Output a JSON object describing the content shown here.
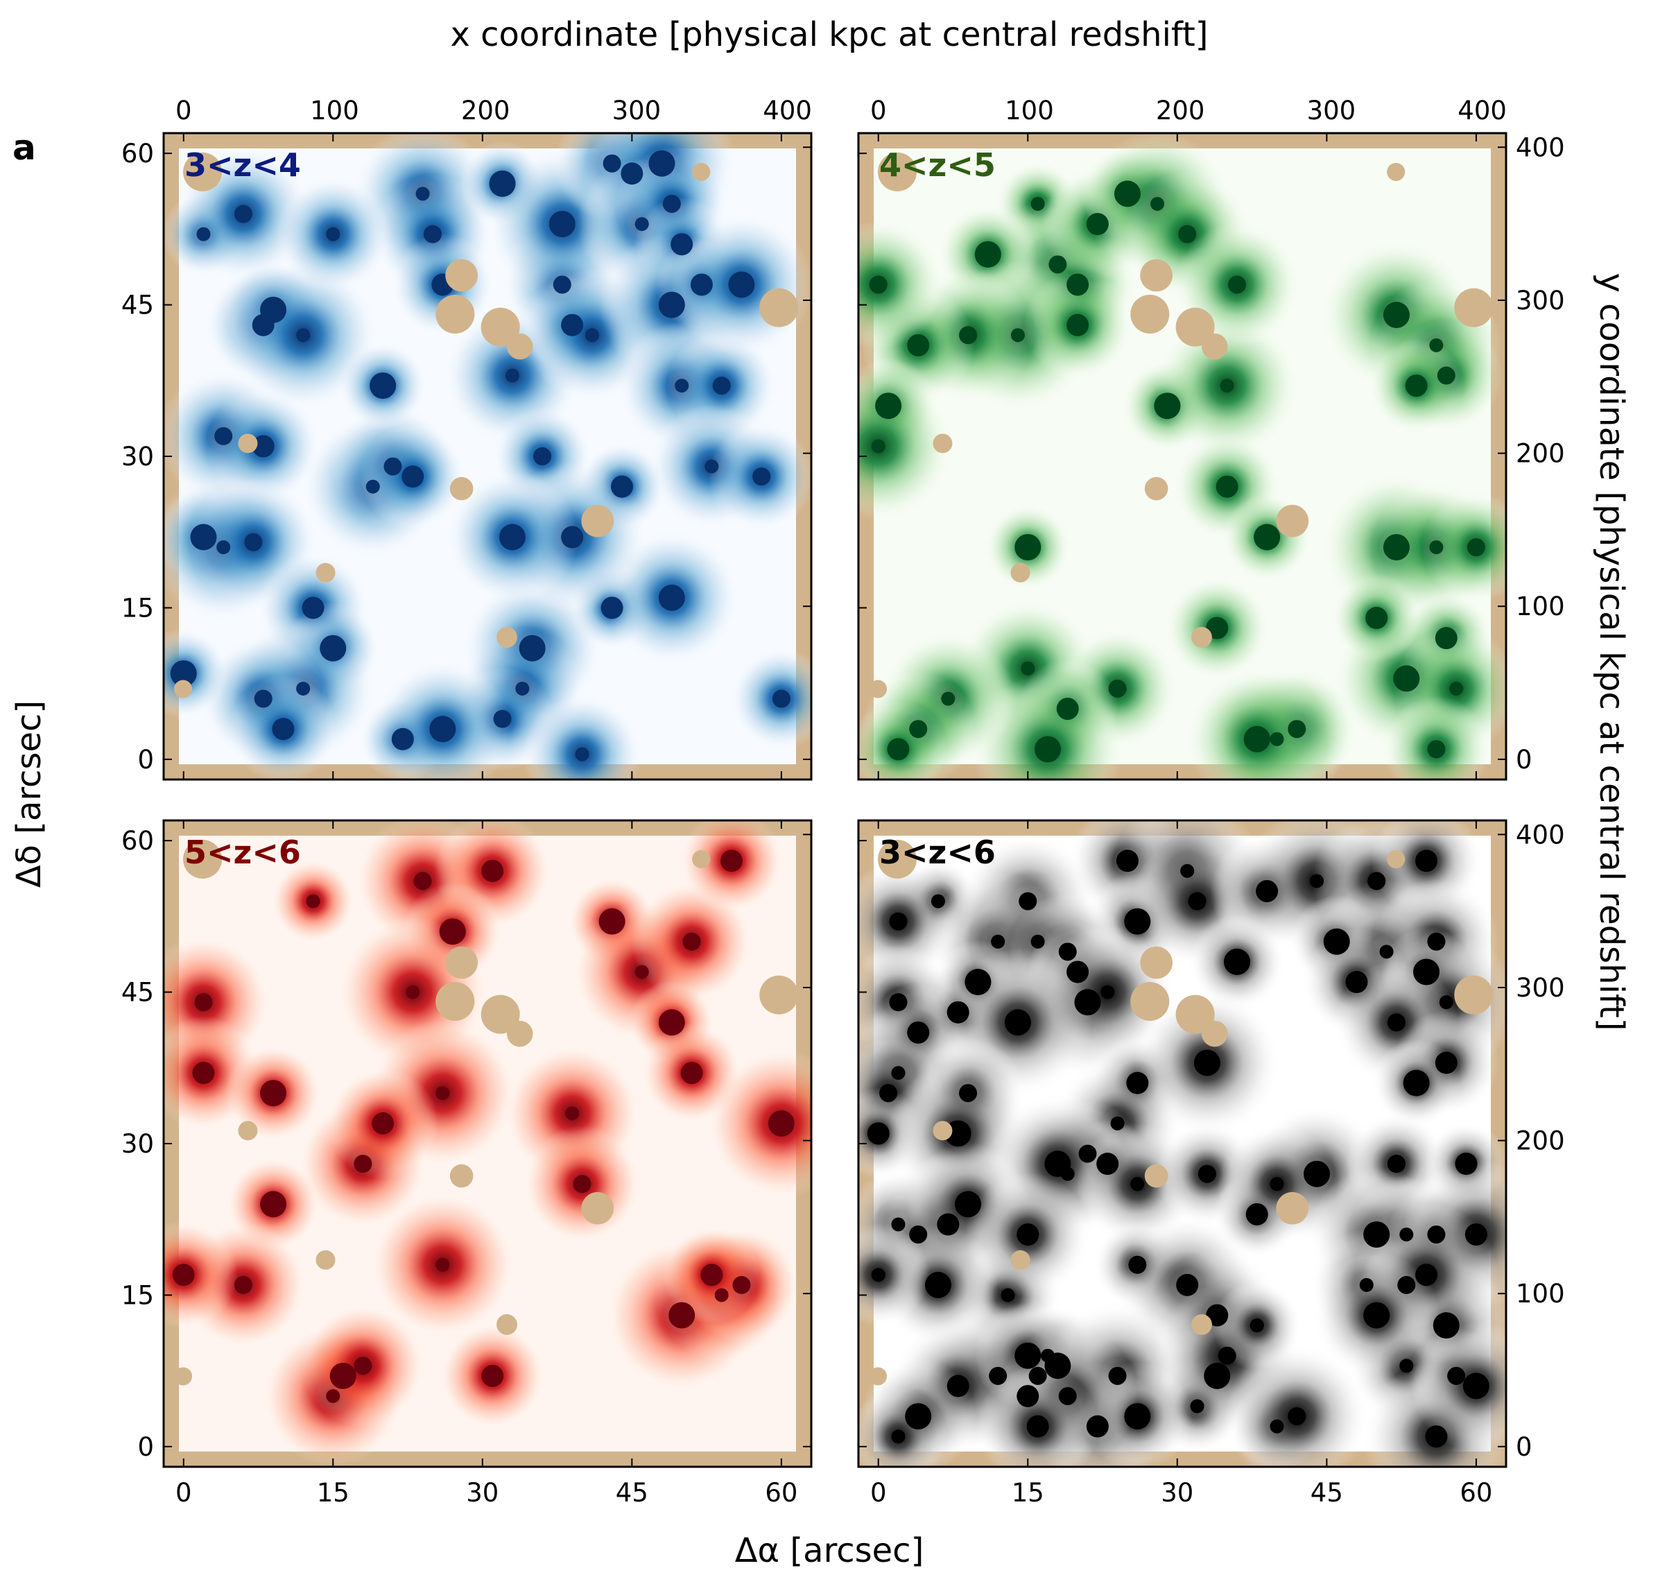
{
  "figure_label": "a",
  "colors": {
    "mask": "#d2b48c",
    "frame": "#000000",
    "background": "#ffffff"
  },
  "chart_data": [
    {
      "type": "heatmap",
      "id": "blue",
      "label": "3<z<4",
      "label_color": "#0d1b80",
      "colormap": [
        "#f7fbff",
        "#c6dbef",
        "#6baed6",
        "#2171b5",
        "#08306b"
      ],
      "xlim": [
        -2,
        63
      ],
      "ylim": [
        -2,
        62
      ],
      "sources": [
        [
          2,
          52
        ],
        [
          6,
          54
        ],
        [
          8,
          43
        ],
        [
          9,
          44.5
        ],
        [
          12,
          42
        ],
        [
          4,
          32
        ],
        [
          8,
          31
        ],
        [
          2,
          22
        ],
        [
          4,
          21
        ],
        [
          7,
          21.5
        ],
        [
          13,
          15
        ],
        [
          15,
          11
        ],
        [
          12,
          7
        ],
        [
          8,
          6
        ],
        [
          10,
          3
        ],
        [
          0,
          8.5
        ],
        [
          19,
          27
        ],
        [
          21,
          29
        ],
        [
          23,
          28
        ],
        [
          20,
          37
        ],
        [
          24,
          56
        ],
        [
          25,
          52
        ],
        [
          26,
          47
        ],
        [
          32,
          57
        ],
        [
          33,
          38
        ],
        [
          38,
          47
        ],
        [
          39,
          43
        ],
        [
          38,
          53
        ],
        [
          41,
          42
        ],
        [
          43,
          59
        ],
        [
          45,
          58
        ],
        [
          48,
          59
        ],
        [
          46,
          53
        ],
        [
          49,
          55
        ],
        [
          50,
          51
        ],
        [
          49,
          45
        ],
        [
          50,
          37
        ],
        [
          54,
          37
        ],
        [
          52,
          47
        ],
        [
          56,
          47
        ],
        [
          53,
          29
        ],
        [
          58,
          28
        ],
        [
          44,
          27
        ],
        [
          35,
          11
        ],
        [
          34,
          7
        ],
        [
          32,
          4
        ],
        [
          22,
          2
        ],
        [
          26,
          3
        ],
        [
          40,
          0.5
        ],
        [
          60,
          6
        ],
        [
          43,
          15
        ],
        [
          49,
          16
        ],
        [
          15,
          52
        ],
        [
          36,
          30
        ],
        [
          39,
          22
        ],
        [
          33,
          22
        ]
      ]
    },
    {
      "type": "heatmap",
      "id": "green",
      "label": "4<z<5",
      "label_color": "#2f5d11",
      "colormap": [
        "#f7fcf5",
        "#c7e9c0",
        "#74c476",
        "#238b45",
        "#00441b"
      ],
      "xlim": [
        -2,
        63
      ],
      "ylim": [
        -2,
        62
      ],
      "sources": [
        [
          16,
          55
        ],
        [
          18,
          49
        ],
        [
          20,
          47
        ],
        [
          11,
          50
        ],
        [
          14,
          42
        ],
        [
          9,
          42
        ],
        [
          4,
          41
        ],
        [
          1,
          35
        ],
        [
          0,
          31
        ],
        [
          0,
          47
        ],
        [
          22,
          53
        ],
        [
          25,
          56
        ],
        [
          28,
          55
        ],
        [
          31,
          52
        ],
        [
          20,
          43
        ],
        [
          29,
          35
        ],
        [
          35,
          37
        ],
        [
          36,
          47
        ],
        [
          35,
          27
        ],
        [
          39,
          22
        ],
        [
          40,
          2
        ],
        [
          42,
          3
        ],
        [
          34,
          13
        ],
        [
          15,
          21
        ],
        [
          15,
          9
        ],
        [
          24,
          7
        ],
        [
          19,
          5
        ],
        [
          17,
          1
        ],
        [
          7,
          6
        ],
        [
          4,
          3
        ],
        [
          2,
          1
        ],
        [
          52,
          44
        ],
        [
          56,
          41
        ],
        [
          57,
          38
        ],
        [
          54,
          37
        ],
        [
          52,
          21
        ],
        [
          56,
          21
        ],
        [
          60,
          21
        ],
        [
          57,
          12
        ],
        [
          53,
          8
        ],
        [
          58,
          7
        ],
        [
          56,
          1
        ],
        [
          50,
          14
        ],
        [
          38,
          2
        ]
      ]
    },
    {
      "type": "heatmap",
      "id": "red",
      "label": "5<z<6",
      "label_color": "#7f0000",
      "colormap": [
        "#fff5f0",
        "#fcbba1",
        "#fb6a4a",
        "#cb181d",
        "#67000d"
      ],
      "xlim": [
        -2,
        63
      ],
      "ylim": [
        -2,
        62
      ],
      "sources": [
        [
          13,
          54
        ],
        [
          24,
          56
        ],
        [
          31,
          57
        ],
        [
          27,
          51
        ],
        [
          23,
          45
        ],
        [
          2,
          44
        ],
        [
          2,
          37
        ],
        [
          9,
          35
        ],
        [
          26,
          35
        ],
        [
          18,
          28
        ],
        [
          20,
          32
        ],
        [
          9,
          24
        ],
        [
          26,
          18
        ],
        [
          6,
          16
        ],
        [
          0,
          17
        ],
        [
          16,
          7
        ],
        [
          15,
          5
        ],
        [
          18,
          8
        ],
        [
          31,
          7
        ],
        [
          43,
          52
        ],
        [
          46,
          47
        ],
        [
          51,
          50
        ],
        [
          55,
          58
        ],
        [
          49,
          42
        ],
        [
          39,
          33
        ],
        [
          40,
          26
        ],
        [
          51,
          37
        ],
        [
          50,
          13
        ],
        [
          54,
          15
        ],
        [
          56,
          16
        ],
        [
          53,
          17
        ],
        [
          60,
          32
        ]
      ]
    },
    {
      "type": "heatmap",
      "id": "grey",
      "label": "3<z<6",
      "label_color": "#000000",
      "colormap": [
        "#ffffff",
        "#e0e0e0",
        "#a0a0a0",
        "#404040",
        "#000000"
      ],
      "xlim": [
        -2,
        63
      ],
      "ylim": [
        -2,
        62
      ],
      "sources": [
        [
          6,
          54
        ],
        [
          15,
          54
        ],
        [
          25,
          58
        ],
        [
          26,
          52
        ],
        [
          31,
          57
        ],
        [
          32,
          54
        ],
        [
          39,
          55
        ],
        [
          36,
          48
        ],
        [
          44,
          56
        ],
        [
          50,
          56
        ],
        [
          55,
          58
        ],
        [
          46,
          50
        ],
        [
          51,
          49
        ],
        [
          56,
          50
        ],
        [
          48,
          46
        ],
        [
          55,
          47
        ],
        [
          57,
          44
        ],
        [
          52,
          42
        ],
        [
          57,
          38
        ],
        [
          54,
          36
        ],
        [
          12,
          50
        ],
        [
          2,
          52
        ],
        [
          8,
          43
        ],
        [
          10,
          46
        ],
        [
          16,
          50
        ],
        [
          19,
          49
        ],
        [
          20,
          47
        ],
        [
          21,
          44
        ],
        [
          23,
          45
        ],
        [
          2,
          44
        ],
        [
          4,
          41
        ],
        [
          14,
          42
        ],
        [
          2,
          37
        ],
        [
          9,
          35
        ],
        [
          26,
          36
        ],
        [
          33,
          38
        ],
        [
          24,
          32
        ],
        [
          1,
          35
        ],
        [
          0,
          31
        ],
        [
          8,
          31
        ],
        [
          19,
          27
        ],
        [
          21,
          29
        ],
        [
          23,
          28
        ],
        [
          18,
          28
        ],
        [
          26,
          26
        ],
        [
          33,
          27
        ],
        [
          38,
          23
        ],
        [
          44,
          27
        ],
        [
          40,
          26
        ],
        [
          52,
          28
        ],
        [
          59,
          28
        ],
        [
          50,
          21
        ],
        [
          53,
          21
        ],
        [
          56,
          21
        ],
        [
          60,
          21
        ],
        [
          57,
          12
        ],
        [
          53,
          8
        ],
        [
          58,
          7
        ],
        [
          56,
          1
        ],
        [
          60,
          6
        ],
        [
          49,
          16
        ],
        [
          53,
          16
        ],
        [
          55,
          17
        ],
        [
          50,
          13
        ],
        [
          2,
          22
        ],
        [
          4,
          21
        ],
        [
          7,
          22
        ],
        [
          9,
          24
        ],
        [
          13,
          15
        ],
        [
          26,
          18
        ],
        [
          31,
          16
        ],
        [
          6,
          16
        ],
        [
          0,
          17
        ],
        [
          16,
          7
        ],
        [
          15,
          5
        ],
        [
          18,
          8
        ],
        [
          17,
          9
        ],
        [
          12,
          7
        ],
        [
          8,
          6
        ],
        [
          4,
          3
        ],
        [
          2,
          1
        ],
        [
          24,
          7
        ],
        [
          34,
          13
        ],
        [
          34,
          7
        ],
        [
          32,
          4
        ],
        [
          35,
          9
        ],
        [
          22,
          2
        ],
        [
          26,
          3
        ],
        [
          40,
          2
        ],
        [
          42,
          3
        ],
        [
          15,
          21
        ],
        [
          15,
          9
        ],
        [
          38,
          12
        ],
        [
          19,
          5
        ],
        [
          16,
          2
        ]
      ]
    }
  ],
  "axes": {
    "bottom_ticks": [
      "0",
      "15",
      "30",
      "45",
      "60"
    ],
    "left_ticks": [
      "0",
      "15",
      "30",
      "45",
      "60"
    ],
    "top_ticks": [
      "0",
      "100",
      "200",
      "300",
      "400"
    ],
    "right_ticks": [
      "0",
      "100",
      "200",
      "300",
      "400"
    ],
    "xlabel": "Δα [arcsec]",
    "ylabel": "Δδ [arcsec]",
    "top_xlabel": "x coordinate [physical kpc at central redshift]",
    "right_ylabel": "y coordinate [physical kpc at central redshift]"
  }
}
